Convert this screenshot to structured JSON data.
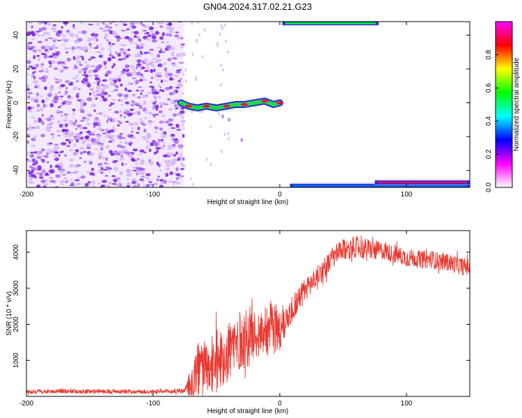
{
  "title": "GN04.2024.317.02.21.G23",
  "colors": {
    "snr_line": "#e83a32",
    "scatter_dots": "#8a2be2",
    "frame": "#000000"
  },
  "chart_data": [
    {
      "type": "heatmap",
      "xlabel": "Height of straight line (km)",
      "ylabel": "Frequency (Hz)",
      "xlim": [
        -200,
        150
      ],
      "ylim": [
        -50,
        48
      ],
      "x_ticks": [
        -200,
        -100,
        0,
        100
      ],
      "x_tick_labels": [
        "-200",
        "-100",
        "0",
        "100"
      ],
      "y_ticks": [
        -40,
        -20,
        0,
        20,
        40
      ],
      "y_tick_labels": [
        "-40",
        "-20",
        "0",
        "20",
        "40"
      ],
      "colorbar": {
        "label": "Normalized spectral amplitude",
        "range": [
          0,
          1
        ],
        "ticks": [
          0.0,
          0.2,
          0.4,
          0.6,
          0.8
        ],
        "tick_labels": [
          "0.0",
          "0.2",
          "0.4",
          "0.6",
          "0.8"
        ],
        "colormap": [
          "#ffffff",
          "#ff00ff",
          "#0000ff",
          "#00ffff",
          "#00ff00",
          "#ffff00",
          "#ff0000",
          "#ff00ff"
        ]
      },
      "noise_region": {
        "x_range": [
          -200,
          -76
        ],
        "y_range": [
          -50,
          48
        ],
        "value": 0.12
      },
      "features": [
        {
          "name": "tone-trace",
          "points": [
            [
              -78,
              0
            ],
            [
              -72,
              -2
            ],
            [
              -65,
              -3
            ],
            [
              -58,
              -2
            ],
            [
              -50,
              -3
            ],
            [
              -42,
              -2
            ],
            [
              -35,
              -1
            ],
            [
              -28,
              -1
            ],
            [
              -20,
              0
            ],
            [
              -12,
              1
            ],
            [
              -5,
              -1
            ],
            [
              0,
              0
            ]
          ],
          "value": 0.75
        },
        {
          "name": "upper-band",
          "x_range": [
            2,
            78
          ],
          "y": 47,
          "value": 0.55
        },
        {
          "name": "lower-band",
          "x_range": [
            8,
            150
          ],
          "y": -49,
          "value": 0.35
        },
        {
          "name": "lower-band-strong",
          "x_range": [
            75,
            150
          ],
          "y": -47,
          "value": 0.9
        }
      ]
    },
    {
      "type": "line",
      "xlabel": "Height of straight line (km)",
      "ylabel": "SNR (10 * v/v)",
      "xlim": [
        -200,
        150
      ],
      "ylim": [
        0,
        4600
      ],
      "x_ticks": [
        -200,
        -100,
        0,
        100
      ],
      "x_tick_labels": [
        "-200",
        "-100",
        "0",
        "100"
      ],
      "y_ticks": [
        1000,
        2000,
        3000,
        4000
      ],
      "y_tick_labels": [
        "1000",
        "2000",
        "3000",
        "4000"
      ],
      "series": [
        {
          "x": [
            -200,
            -175,
            -150,
            -125,
            -100,
            -85,
            -75,
            -70,
            -65,
            -60,
            -55,
            -50,
            -45,
            -40,
            -35,
            -30,
            -25,
            -20,
            -15,
            -10,
            -5,
            0,
            5,
            10,
            15,
            20,
            25,
            30,
            35,
            40,
            45,
            50,
            55,
            60,
            65,
            70,
            75,
            80,
            85,
            90,
            95,
            100,
            105,
            110,
            115,
            120,
            125,
            130,
            135,
            140,
            145,
            150
          ],
          "y": [
            130,
            140,
            135,
            140,
            130,
            135,
            160,
            300,
            700,
            900,
            600,
            950,
            1100,
            1300,
            1450,
            1550,
            1650,
            1750,
            1800,
            1900,
            1950,
            1850,
            2150,
            2450,
            2700,
            2950,
            3150,
            3350,
            3550,
            3750,
            3950,
            4050,
            4100,
            4150,
            4100,
            4100,
            4050,
            4050,
            4000,
            3950,
            3900,
            3850,
            3850,
            3800,
            3800,
            3800,
            3750,
            3750,
            3700,
            3650,
            3600,
            3600
          ],
          "noise_amplitude": [
            60,
            60,
            60,
            60,
            60,
            60,
            80,
            500,
            800,
            700,
            600,
            900,
            800,
            900,
            900,
            800,
            900,
            600,
            600,
            800,
            700,
            700,
            400,
            400,
            350,
            350,
            300,
            300,
            300,
            300,
            300,
            300,
            300,
            300,
            300,
            280,
            280,
            250,
            250,
            250,
            250,
            250,
            250,
            250,
            250,
            250,
            250,
            250,
            250,
            250,
            250,
            250
          ]
        }
      ]
    }
  ]
}
